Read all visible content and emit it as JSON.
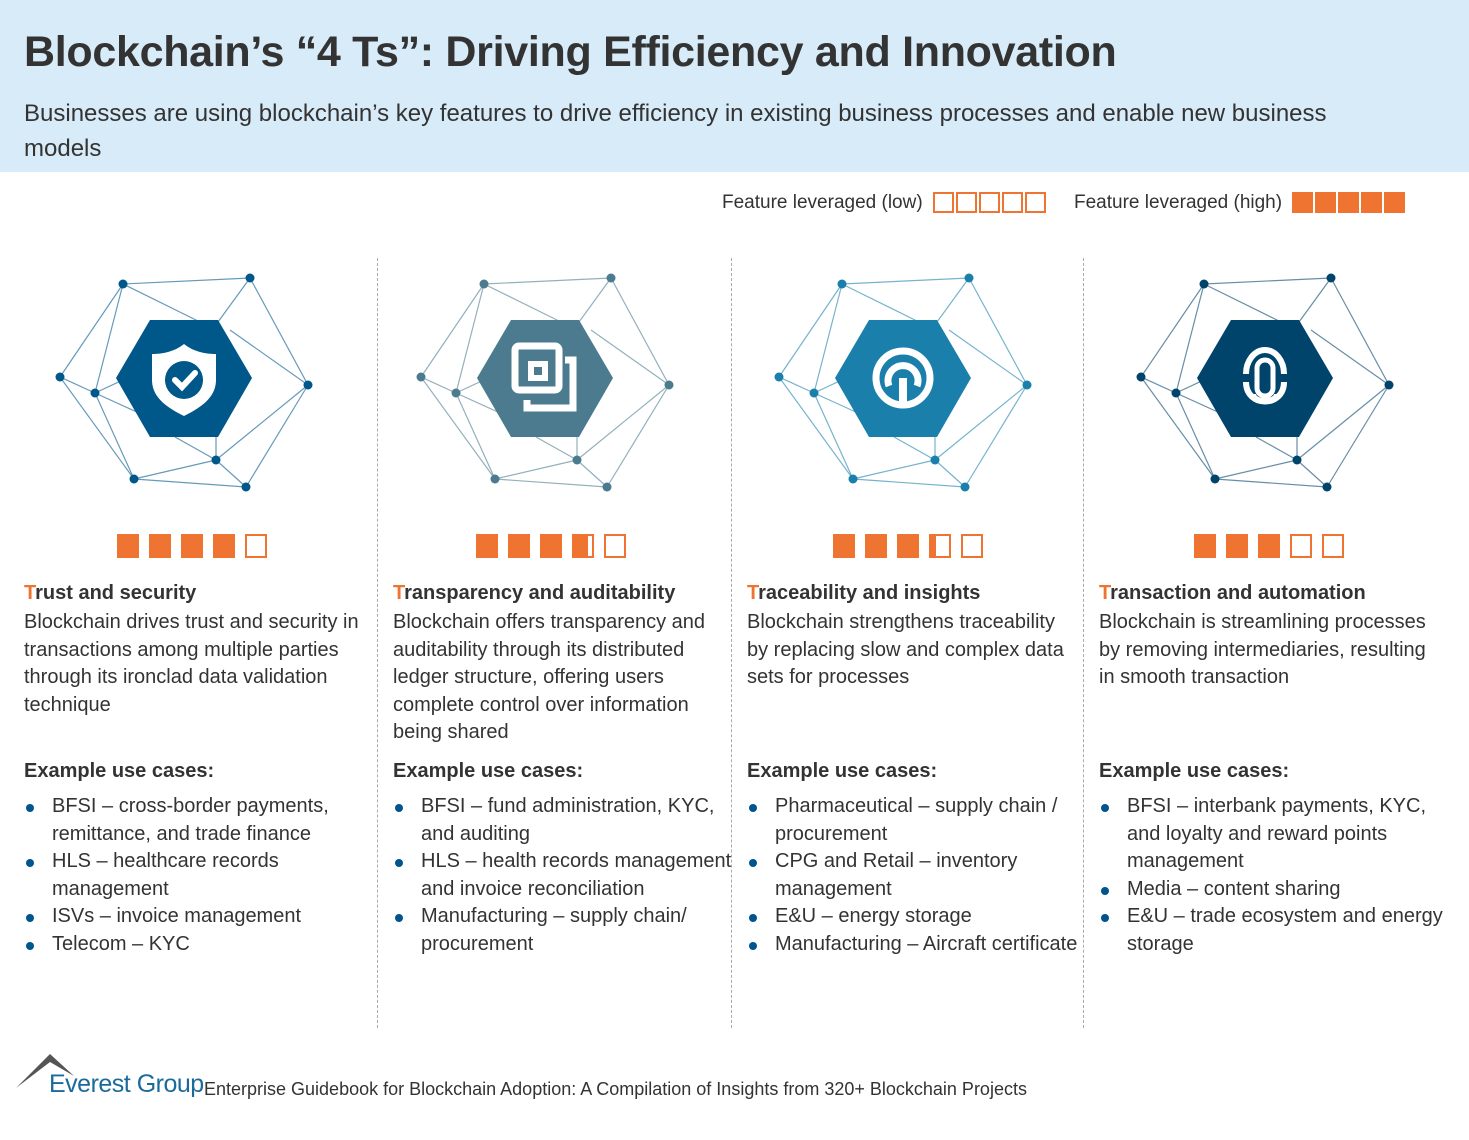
{
  "header": {
    "title": "Blockchain’s “4 Ts”: Driving Efficiency and Innovation",
    "subtitle": "Businesses are using blockchain’s key features to drive efficiency in existing business processes and enable new business models"
  },
  "legend": {
    "low_label": "Feature leveraged (low)",
    "high_label": "Feature leveraged (high)"
  },
  "colors": {
    "accent": "#f07431",
    "header_bg": "#d7ebf8"
  },
  "use_cases_label": "Example use cases:",
  "columns": [
    {
      "icon": "shield-check-icon",
      "color": "#00578a",
      "rating": 4,
      "title_first": "T",
      "title_rest": "rust and security",
      "description": "Blockchain drives trust and security in transactions among multiple parties through its ironclad data validation technique",
      "uses": [
        "BFSI – cross-border payments, remittance, and trade finance",
        "HLS – healthcare records management",
        "ISVs – invoice management",
        "Telecom – KYC"
      ]
    },
    {
      "icon": "copy-squares-icon",
      "color": "#4c7b90",
      "rating": 3.75,
      "title_first": "T",
      "title_rest": "ransparency and auditability",
      "description": "Blockchain offers transparency and auditability through its distributed ledger structure, offering users complete control over information being shared",
      "uses": [
        "BFSI – fund administration, KYC, and auditing",
        "HLS – health records management and invoice reconciliation",
        "Manufacturing – supply chain/ procurement"
      ]
    },
    {
      "icon": "power-trace-icon",
      "color": "#1a80ab",
      "rating": 3.25,
      "title_first": "T",
      "title_rest": "raceability and insights",
      "description": "Blockchain strengthens traceability by replacing slow and complex data sets for processes",
      "uses": [
        "Pharmaceutical – supply chain / procurement",
        "CPG and Retail – inventory management",
        "E&U – energy storage",
        "Manufacturing – Aircraft certificate"
      ]
    },
    {
      "icon": "fingerprint-icon",
      "color": "#00436b",
      "rating": 3,
      "title_first": "T",
      "title_rest": "ransaction and automation",
      "description": "Blockchain is streamlining processes by removing intermediaries, resulting in smooth transaction",
      "uses": [
        "BFSI – interbank payments, KYC, and loyalty and reward points management",
        "Media – content sharing",
        "E&U – trade ecosystem and energy storage"
      ]
    }
  ],
  "footer": {
    "logo": "Everest Group",
    "source": "Enterprise Guidebook for Blockchain Adoption: A Compilation of Insights from 320+ Blockchain Projects"
  }
}
